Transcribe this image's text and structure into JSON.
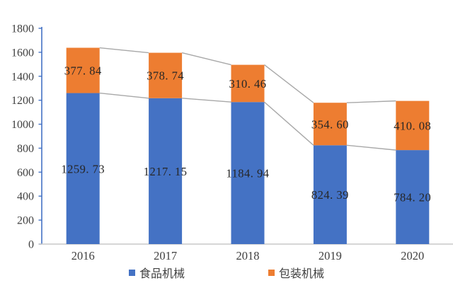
{
  "chart_data": {
    "type": "bar",
    "stacked": true,
    "title": "",
    "xlabel": "",
    "ylabel": "",
    "categories": [
      "2016",
      "2017",
      "2018",
      "2019",
      "2020"
    ],
    "series": [
      {
        "name": "食品机械",
        "color": "#4472C4",
        "values": [
          1259.73,
          1217.15,
          1184.94,
          824.39,
          784.2
        ],
        "labels": [
          "1259. 73",
          "1217. 15",
          "1184. 94",
          "824. 39",
          "784. 20"
        ]
      },
      {
        "name": "包装机械",
        "color": "#ED7D31",
        "values": [
          377.84,
          378.74,
          310.46,
          354.6,
          410.08
        ],
        "labels": [
          "377. 84",
          "378. 74",
          "310. 46",
          "354. 60",
          "410. 08"
        ]
      }
    ],
    "ylim": [
      0,
      1800
    ],
    "ytick_step": 200,
    "yticks": [
      "0",
      "200",
      "400",
      "600",
      "800",
      "1000",
      "1200",
      "1400",
      "1600",
      "1800"
    ],
    "grid": false,
    "legend_position": "bottom",
    "series_lines": true,
    "colors": {
      "y_axis": "#4472C4",
      "x_axis": "#C9C9C9",
      "series_line": "#A8A8A8",
      "data_label_text": "#262626",
      "tick_label_text": "#404040",
      "background": "#FFFFFF"
    }
  }
}
